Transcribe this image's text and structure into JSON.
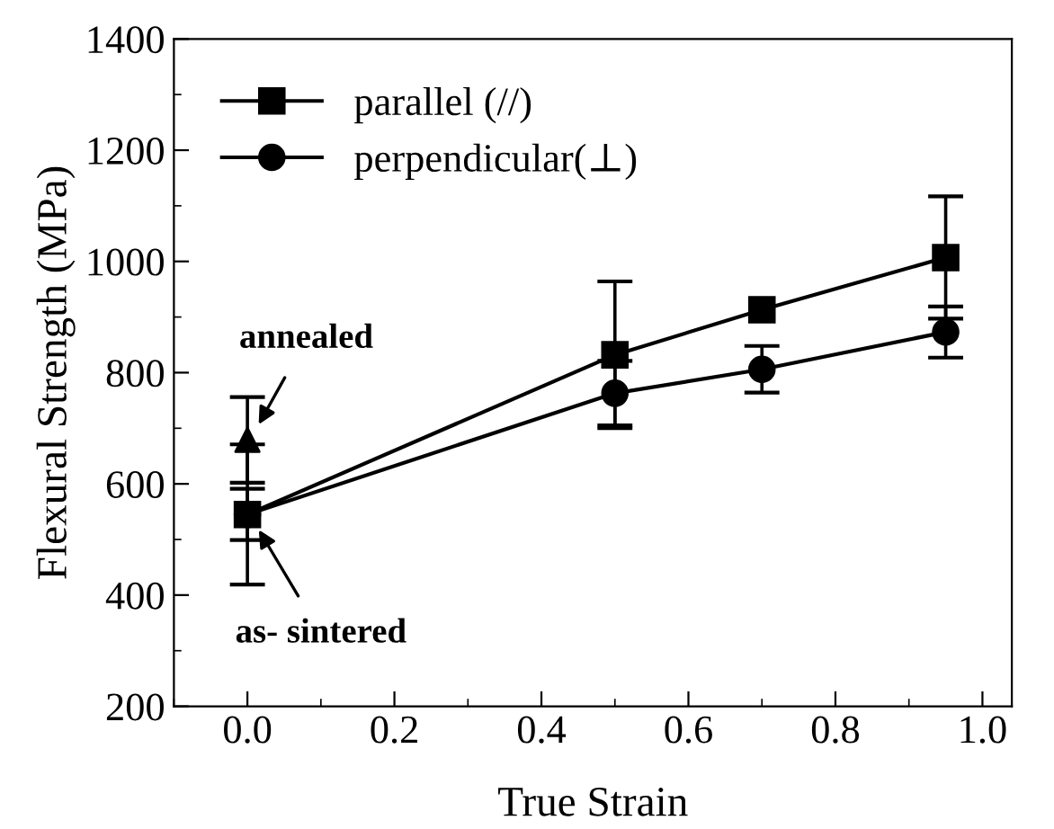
{
  "chart_data": {
    "type": "line",
    "xlabel": "True Strain",
    "ylabel": "Flexural Strength (MPa)",
    "xlim": [
      -0.1,
      1.04
    ],
    "xticks": [
      {
        "value": 0,
        "label": "0.0"
      },
      0.2,
      0.4,
      0.6,
      0.8,
      {
        "value": 1,
        "label": "1.0"
      }
    ],
    "ylim": [
      200,
      1400
    ],
    "yticks": [
      200,
      400,
      600,
      800,
      1000,
      1200,
      1400
    ],
    "x": [
      0,
      0.5,
      0.7,
      0.95
    ],
    "series": [
      {
        "name": "parallel (//)",
        "color": "#000000",
        "marker": "square",
        "values": [
          545,
          832,
          913,
          1007
        ],
        "errors": [
          126,
          132,
          null,
          110
        ]
      },
      {
        "name": "perpendicular(⊥)",
        "color": "#000000",
        "marker": "circle",
        "values": [
          545,
          763,
          806,
          873
        ],
        "errors": [
          46,
          58,
          42,
          46
        ]
      },
      {
        "type": "scatter",
        "color": "#000000",
        "marker": "triangle",
        "x": [
          0
        ],
        "values": [
          679
        ],
        "errors": [
          77
        ]
      }
    ],
    "annotations": [
      {
        "text": "annealed",
        "x": 0,
        "y": 679
      },
      {
        "text": "as- sintered",
        "x": 0,
        "y": 545
      }
    ],
    "legend": "top left",
    "grid": false,
    "line_style": "solid"
  }
}
